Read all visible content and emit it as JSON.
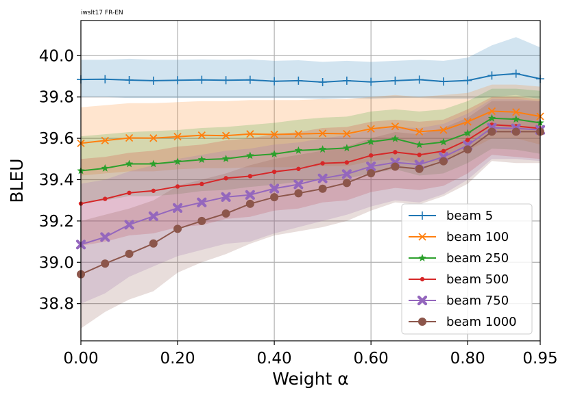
{
  "chart_data": {
    "type": "line",
    "title": "iwslt17 FR-EN",
    "xlabel": "Weight α",
    "ylabel": "BLEU",
    "xlim": [
      0.0,
      0.95
    ],
    "ylim": [
      38.62,
      40.17
    ],
    "xticks": [
      0.0,
      0.2,
      0.4,
      0.6,
      0.8,
      0.95
    ],
    "xtick_labels": [
      "0.00",
      "0.20",
      "0.40",
      "0.60",
      "0.80",
      "0.95"
    ],
    "yticks": [
      38.8,
      39.0,
      39.2,
      39.4,
      39.6,
      39.8,
      40.0
    ],
    "ytick_labels": [
      "38.8",
      "39.0",
      "39.2",
      "39.4",
      "39.6",
      "39.8",
      "40.0"
    ],
    "grid": true,
    "legend_position": "lower-right",
    "x": [
      0.0,
      0.05,
      0.1,
      0.15,
      0.2,
      0.25,
      0.3,
      0.35,
      0.4,
      0.45,
      0.5,
      0.55,
      0.6,
      0.65,
      0.7,
      0.75,
      0.8,
      0.85,
      0.9,
      0.95
    ],
    "series": [
      {
        "name": "beam 5",
        "color": "#1f77b4",
        "marker": "plus",
        "values": [
          39.885,
          39.886,
          39.882,
          39.879,
          39.881,
          39.883,
          39.881,
          39.883,
          39.876,
          39.879,
          39.872,
          39.879,
          39.873,
          39.879,
          39.884,
          39.875,
          39.88,
          39.904,
          39.913,
          39.888
        ],
        "upper": [
          39.98,
          39.98,
          39.985,
          39.98,
          39.98,
          39.982,
          39.98,
          39.982,
          39.975,
          39.978,
          39.97,
          39.975,
          39.97,
          39.975,
          39.98,
          39.975,
          39.99,
          40.05,
          40.09,
          40.04
        ],
        "lower": [
          39.8,
          39.8,
          39.795,
          39.795,
          39.795,
          39.795,
          39.795,
          39.795,
          39.795,
          39.795,
          39.79,
          39.795,
          39.79,
          39.795,
          39.795,
          39.79,
          39.79,
          39.8,
          39.81,
          39.79
        ]
      },
      {
        "name": "beam 100",
        "color": "#ff7f0e",
        "marker": "x",
        "values": [
          39.576,
          39.589,
          39.602,
          39.601,
          39.608,
          39.615,
          39.613,
          39.621,
          39.619,
          39.621,
          39.624,
          39.622,
          39.646,
          39.658,
          39.632,
          39.64,
          39.68,
          39.731,
          39.727,
          39.706
        ],
        "upper": [
          39.75,
          39.76,
          39.77,
          39.77,
          39.775,
          39.78,
          39.78,
          39.785,
          39.785,
          39.785,
          39.79,
          39.79,
          39.8,
          39.81,
          39.8,
          39.81,
          39.82,
          39.86,
          39.86,
          39.85
        ],
        "lower": [
          39.42,
          39.43,
          39.44,
          39.44,
          39.45,
          39.455,
          39.455,
          39.46,
          39.46,
          39.46,
          39.465,
          39.465,
          39.49,
          39.5,
          39.48,
          39.49,
          39.54,
          39.6,
          39.6,
          39.57
        ]
      },
      {
        "name": "beam 250",
        "color": "#2ca02c",
        "marker": "star",
        "values": [
          39.443,
          39.455,
          39.476,
          39.476,
          39.487,
          39.497,
          39.501,
          39.516,
          39.524,
          39.541,
          39.547,
          39.553,
          39.583,
          39.598,
          39.569,
          39.582,
          39.625,
          39.697,
          39.692,
          39.675
        ],
        "upper": [
          39.61,
          39.62,
          39.63,
          39.635,
          39.64,
          39.65,
          39.655,
          39.665,
          39.675,
          39.69,
          39.7,
          39.705,
          39.73,
          39.74,
          39.73,
          39.74,
          39.78,
          39.84,
          39.84,
          39.83
        ],
        "lower": [
          39.29,
          39.3,
          39.32,
          39.32,
          39.33,
          39.345,
          39.35,
          39.365,
          39.375,
          39.39,
          39.4,
          39.405,
          39.43,
          39.45,
          39.42,
          39.43,
          39.48,
          39.55,
          39.545,
          39.525
        ]
      },
      {
        "name": "beam 500",
        "color": "#d62728",
        "marker": "dot",
        "values": [
          39.284,
          39.307,
          39.336,
          39.346,
          39.367,
          39.379,
          39.407,
          39.417,
          39.438,
          39.452,
          39.479,
          39.483,
          39.517,
          39.533,
          39.52,
          39.538,
          39.592,
          39.666,
          39.659,
          39.648
        ],
        "upper": [
          39.5,
          39.51,
          39.53,
          39.54,
          39.56,
          39.57,
          39.59,
          39.6,
          39.62,
          39.63,
          39.65,
          39.655,
          39.68,
          39.69,
          39.68,
          39.69,
          39.74,
          39.8,
          39.8,
          39.79
        ],
        "lower": [
          39.08,
          39.1,
          39.13,
          39.14,
          39.17,
          39.18,
          39.21,
          39.22,
          39.25,
          39.26,
          39.29,
          39.3,
          39.34,
          39.36,
          39.35,
          39.37,
          39.43,
          39.52,
          39.51,
          39.5
        ]
      },
      {
        "name": "beam 750",
        "color": "#9467bd",
        "marker": "thick-x",
        "values": [
          39.086,
          39.122,
          39.182,
          39.223,
          39.263,
          39.29,
          39.316,
          39.326,
          39.357,
          39.377,
          39.406,
          39.427,
          39.464,
          39.483,
          39.473,
          39.51,
          39.566,
          39.651,
          39.648,
          39.641
        ],
        "upper": [
          39.38,
          39.4,
          39.44,
          39.47,
          39.5,
          39.52,
          39.54,
          39.55,
          39.57,
          39.58,
          39.6,
          39.615,
          39.64,
          39.655,
          39.65,
          39.67,
          39.72,
          39.79,
          39.79,
          39.78
        ],
        "lower": [
          38.8,
          38.85,
          38.93,
          38.98,
          39.03,
          39.06,
          39.09,
          39.1,
          39.14,
          39.17,
          39.2,
          39.23,
          39.27,
          39.3,
          39.29,
          39.33,
          39.4,
          39.5,
          39.5,
          39.49
        ]
      },
      {
        "name": "beam 1000",
        "color": "#8c564b",
        "marker": "big-dot",
        "values": [
          38.942,
          38.994,
          39.041,
          39.091,
          39.162,
          39.2,
          39.236,
          39.283,
          39.315,
          39.334,
          39.356,
          39.384,
          39.431,
          39.463,
          39.452,
          39.489,
          39.546,
          39.632,
          39.632,
          39.632
        ],
        "upper": [
          39.2,
          39.23,
          39.26,
          39.3,
          39.37,
          39.4,
          39.43,
          39.47,
          39.5,
          39.52,
          39.54,
          39.56,
          39.6,
          39.63,
          39.62,
          39.65,
          39.7,
          39.78,
          39.78,
          39.78
        ],
        "lower": [
          38.68,
          38.76,
          38.82,
          38.86,
          38.95,
          39.0,
          39.04,
          39.09,
          39.13,
          39.15,
          39.17,
          39.2,
          39.25,
          39.29,
          39.28,
          39.32,
          39.38,
          39.49,
          39.48,
          39.48
        ]
      }
    ]
  }
}
